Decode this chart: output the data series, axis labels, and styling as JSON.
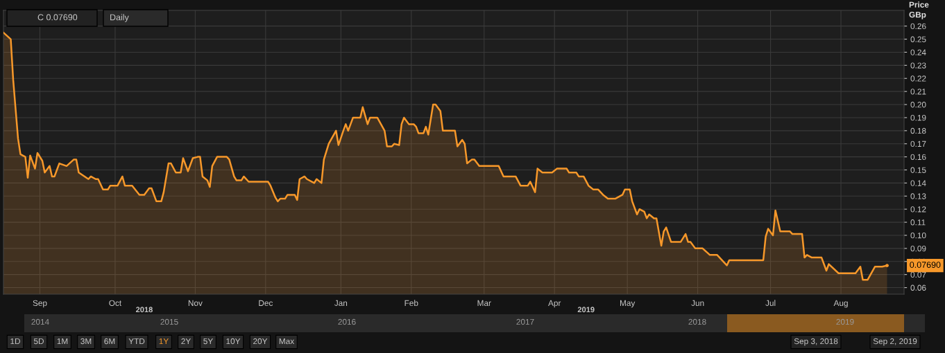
{
  "chart_data": {
    "type": "area",
    "ylabel": "Price\nGBp",
    "x": [
      "2018-09-03",
      "2018-09-06",
      "2018-09-07",
      "2018-09-09",
      "2018-09-10",
      "2018-09-12",
      "2018-09-13",
      "2018-09-14",
      "2018-09-16",
      "2018-09-17",
      "2018-09-19",
      "2018-09-20",
      "2018-09-22",
      "2018-09-23",
      "2018-09-24",
      "2018-09-26",
      "2018-09-29",
      "2018-10-02",
      "2018-10-03",
      "2018-10-04",
      "2018-10-08",
      "2018-10-09",
      "2018-10-11",
      "2018-10-12",
      "2018-10-14",
      "2018-10-16",
      "2018-10-17",
      "2018-10-20",
      "2018-10-22",
      "2018-10-23",
      "2018-10-26",
      "2018-10-29",
      "2018-10-31",
      "2018-11-02",
      "2018-11-03",
      "2018-11-05",
      "2018-11-07",
      "2018-11-08",
      "2018-11-10",
      "2018-11-11",
      "2018-11-13",
      "2018-11-15",
      "2018-11-16",
      "2018-11-18",
      "2018-11-20",
      "2018-11-22",
      "2018-11-23",
      "2018-11-24",
      "2018-11-26",
      "2018-11-27",
      "2018-11-28",
      "2018-11-30",
      "2018-12-04",
      "2018-12-05",
      "2018-12-07",
      "2018-12-08",
      "2018-12-10",
      "2018-12-11",
      "2018-12-13",
      "2018-12-21",
      "2018-12-22",
      "2018-12-24",
      "2018-12-25",
      "2018-12-26",
      "2018-12-28",
      "2018-12-29",
      "2019-01-01",
      "2019-01-02",
      "2019-01-03",
      "2019-01-05",
      "2019-01-06",
      "2019-01-09",
      "2019-01-10",
      "2019-01-12",
      "2019-01-13",
      "2019-01-15",
      "2019-01-18",
      "2019-01-19",
      "2019-01-21",
      "2019-01-22",
      "2019-01-23",
      "2019-01-25",
      "2019-01-28",
      "2019-01-29",
      "2019-01-31",
      "2019-02-01",
      "2019-02-04",
      "2019-02-07",
      "2019-02-08",
      "2019-02-10",
      "2019-02-11",
      "2019-02-13",
      "2019-02-14",
      "2019-02-15",
      "2019-02-17",
      "2019-02-19",
      "2019-02-20",
      "2019-02-21",
      "2019-02-23",
      "2019-02-24",
      "2019-02-25",
      "2019-02-27",
      "2019-02-28",
      "2019-03-02",
      "2019-03-03",
      "2019-03-08",
      "2019-03-09",
      "2019-03-11",
      "2019-03-12",
      "2019-03-13",
      "2019-03-15",
      "2019-03-16",
      "2019-03-18",
      "2019-03-26",
      "2019-03-28",
      "2019-04-02",
      "2019-04-04",
      "2019-04-07",
      "2019-04-08",
      "2019-04-10",
      "2019-04-11",
      "2019-04-13",
      "2019-04-17",
      "2019-04-19",
      "2019-04-23",
      "2019-04-24",
      "2019-04-27",
      "2019-04-28",
      "2019-04-30",
      "2019-05-02",
      "2019-05-04",
      "2019-05-06",
      "2019-05-08",
      "2019-05-10",
      "2019-05-13",
      "2019-05-16",
      "2019-05-17",
      "2019-05-19",
      "2019-05-20",
      "2019-05-22",
      "2019-05-23",
      "2019-05-25",
      "2019-05-26",
      "2019-05-27",
      "2019-05-29",
      "2019-05-30",
      "2019-06-01",
      "2019-06-02",
      "2019-06-03",
      "2019-06-05",
      "2019-06-09",
      "2019-06-11",
      "2019-06-12",
      "2019-06-13",
      "2019-06-15",
      "2019-06-18",
      "2019-06-21",
      "2019-06-24",
      "2019-06-28",
      "2019-06-29",
      "2019-07-13",
      "2019-07-14",
      "2019-07-15",
      "2019-07-17",
      "2019-07-18",
      "2019-07-20",
      "2019-07-24",
      "2019-07-25",
      "2019-07-29",
      "2019-07-30",
      "2019-07-31",
      "2019-08-02",
      "2019-08-06",
      "2019-08-08",
      "2019-08-09",
      "2019-08-13",
      "2019-08-20",
      "2019-08-22",
      "2019-08-23",
      "2019-08-25",
      "2019-08-28",
      "2019-08-31",
      "2019-09-02"
    ],
    "series": [
      {
        "color": "#f7982a",
        "values": [
          0.255,
          0.25,
          0.219,
          0.174,
          0.162,
          0.16,
          0.144,
          0.161,
          0.151,
          0.163,
          0.157,
          0.148,
          0.153,
          0.145,
          0.145,
          0.155,
          0.153,
          0.158,
          0.158,
          0.148,
          0.143,
          0.145,
          0.143,
          0.143,
          0.135,
          0.135,
          0.138,
          0.138,
          0.145,
          0.138,
          0.138,
          0.131,
          0.131,
          0.136,
          0.136,
          0.126,
          0.126,
          0.133,
          0.155,
          0.155,
          0.148,
          0.148,
          0.159,
          0.149,
          0.159,
          0.16,
          0.16,
          0.145,
          0.142,
          0.137,
          0.153,
          0.16,
          0.16,
          0.158,
          0.145,
          0.142,
          0.142,
          0.145,
          0.141,
          0.141,
          0.138,
          0.129,
          0.126,
          0.128,
          0.128,
          0.131,
          0.131,
          0.127,
          0.143,
          0.145,
          0.143,
          0.14,
          0.143,
          0.14,
          0.158,
          0.17,
          0.18,
          0.169,
          0.18,
          0.185,
          0.18,
          0.19,
          0.19,
          0.198,
          0.185,
          0.19,
          0.19,
          0.18,
          0.168,
          0.168,
          0.17,
          0.169,
          0.185,
          0.19,
          0.185,
          0.185,
          0.183,
          0.178,
          0.178,
          0.183,
          0.177,
          0.2,
          0.2,
          0.195,
          0.18,
          0.18,
          0.168,
          0.173,
          0.17,
          0.155,
          0.158,
          0.158,
          0.153,
          0.153,
          0.145,
          0.145,
          0.138,
          0.138,
          0.141,
          0.133,
          0.151,
          0.148,
          0.148,
          0.151,
          0.151,
          0.148,
          0.148,
          0.145,
          0.145,
          0.138,
          0.135,
          0.135,
          0.131,
          0.128,
          0.128,
          0.131,
          0.135,
          0.135,
          0.126,
          0.116,
          0.12,
          0.118,
          0.113,
          0.116,
          0.113,
          0.113,
          0.092,
          0.103,
          0.106,
          0.095,
          0.095,
          0.101,
          0.095,
          0.095,
          0.09,
          0.09,
          0.085,
          0.085,
          0.077,
          0.081,
          0.081,
          0.099,
          0.105,
          0.1,
          0.119,
          0.103,
          0.103,
          0.101,
          0.101,
          0.083,
          0.085,
          0.083,
          0.083,
          0.073,
          0.078,
          0.071,
          0.071,
          0.076,
          0.066,
          0.066,
          0.076,
          0.076,
          0.0769
        ]
      }
    ],
    "xlim": [
      "2018-09-03",
      "2019-09-09"
    ],
    "xticks": [
      {
        "value": "2018-09-18",
        "label": "Sep"
      },
      {
        "value": "2018-10-19",
        "label": "Oct"
      },
      {
        "value": "2018-11-21",
        "label": "Nov"
      },
      {
        "value": "2018-12-20",
        "label": "Dec"
      },
      {
        "value": "2019-01-20",
        "label": "Jan"
      },
      {
        "value": "2019-02-18",
        "label": "Feb"
      },
      {
        "value": "2019-03-20",
        "label": "Mar"
      },
      {
        "value": "2019-04-18",
        "label": "Apr"
      },
      {
        "value": "2019-05-18",
        "label": "May"
      },
      {
        "value": "2019-06-16",
        "label": "Jun"
      },
      {
        "value": "2019-07-16",
        "label": "Jul"
      },
      {
        "value": "2019-08-14",
        "label": "Aug"
      }
    ],
    "x2lim": [
      "2018-09-03",
      "2019-09-09"
    ],
    "x2ticks": [
      {
        "value": "2018-10-31",
        "label": "2018"
      },
      {
        "value": "2019-05-01",
        "label": "2019"
      }
    ],
    "ylim": [
      0.055,
      0.272
    ],
    "yticks": [
      0.06,
      0.07,
      0.08,
      0.09,
      {
        "value": 0.1,
        "label": "0.10"
      },
      0.11,
      0.12,
      0.13,
      0.14,
      0.15,
      0.16,
      0.17,
      0.18,
      0.19,
      {
        "value": 0.2,
        "label": "0.20"
      },
      0.21,
      0.22,
      0.23,
      0.24,
      0.25,
      0.26
    ],
    "grid": true,
    "annotations": [
      "C 0.07690",
      "Daily",
      {
        "text": "0.07690",
        "x": "2019-09-02",
        "y": 0.0769
      },
      "2014",
      "2015",
      "2016",
      "2017",
      "2018",
      "2019",
      "1D",
      "5D",
      "1M",
      "3M",
      "6M",
      "YTD",
      "1Y",
      "2Y",
      "5Y",
      "10Y",
      "20Y",
      "Max",
      "Sep 3, 2018",
      "Sep 2, 2019"
    ]
  }
}
